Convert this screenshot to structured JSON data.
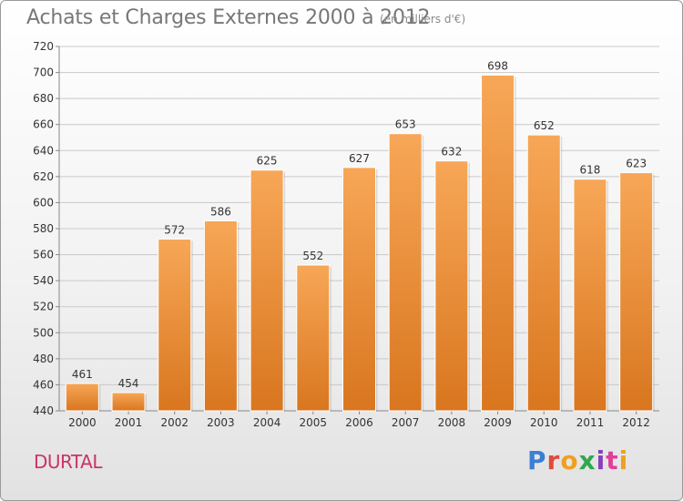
{
  "header": {
    "title": "Achats et Charges Externes 2000 à 2012",
    "subtitle": "(en milliers d'€)"
  },
  "footer": {
    "place": "DURTAL",
    "logo_text": "Proxiti",
    "logo_colors": [
      "#3b7fd4",
      "#e24a3b",
      "#f0a020",
      "#2fa84f",
      "#8a3fb8",
      "#e0409a",
      "#f0a020"
    ]
  },
  "colors": {
    "bar_top": "#f7a757",
    "bar_bottom": "#d9761f",
    "grid": "#c9c9c9",
    "axis_text": "#333333"
  },
  "chart_data": {
    "type": "bar",
    "categories": [
      "2000",
      "2001",
      "2002",
      "2003",
      "2004",
      "2005",
      "2006",
      "2007",
      "2008",
      "2009",
      "2010",
      "2011",
      "2012"
    ],
    "values": [
      461,
      454,
      572,
      586,
      625,
      552,
      627,
      653,
      632,
      698,
      652,
      618,
      623
    ],
    "ylim": [
      440,
      720
    ],
    "yticks": [
      440,
      460,
      480,
      500,
      520,
      540,
      560,
      580,
      600,
      620,
      640,
      660,
      680,
      700,
      720
    ],
    "grid": true,
    "data_labels": true
  }
}
